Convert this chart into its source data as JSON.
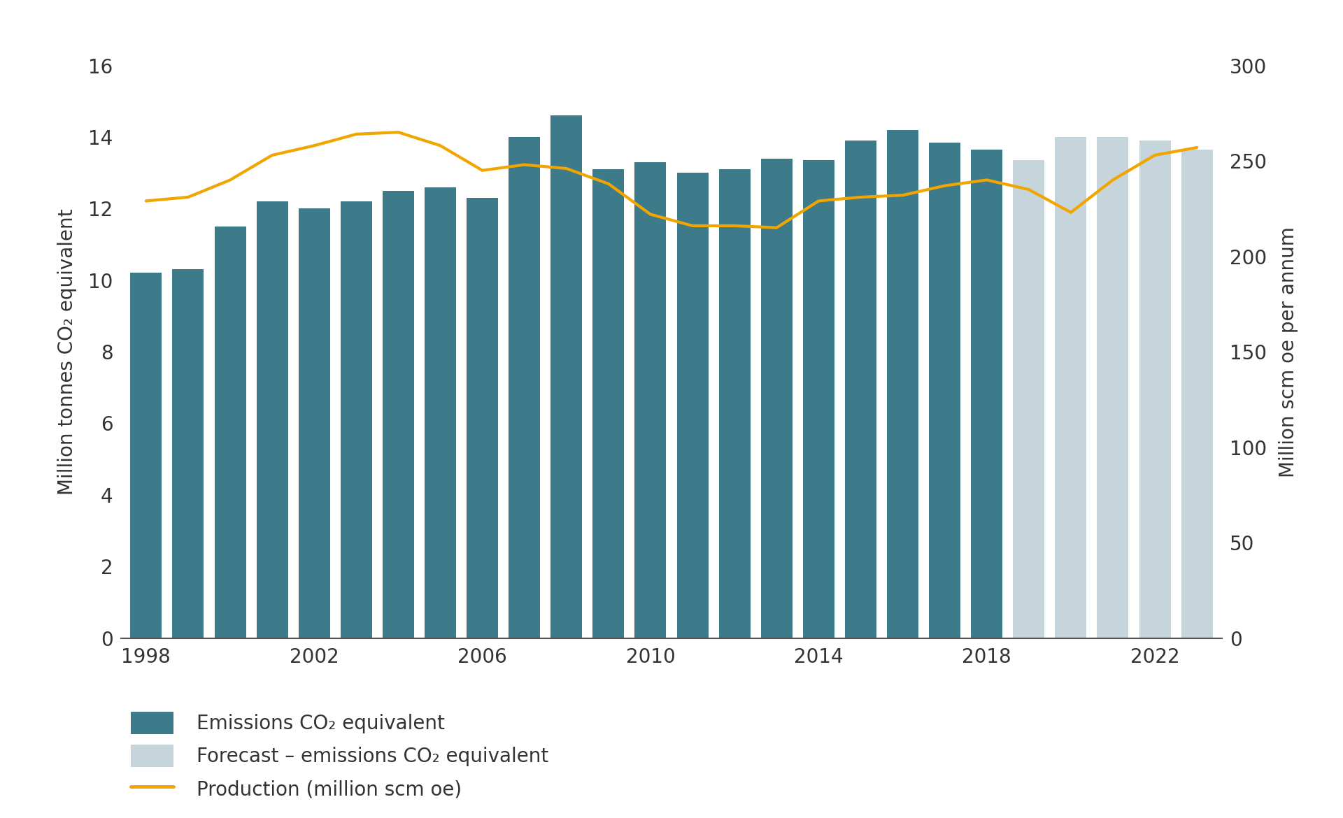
{
  "years": [
    1998,
    1999,
    2000,
    2001,
    2002,
    2003,
    2004,
    2005,
    2006,
    2007,
    2008,
    2009,
    2010,
    2011,
    2012,
    2013,
    2014,
    2015,
    2016,
    2017,
    2018,
    2019,
    2020,
    2021,
    2022,
    2023
  ],
  "bar_values": [
    10.2,
    10.3,
    11.5,
    12.2,
    12.0,
    12.2,
    12.5,
    12.6,
    12.3,
    14.0,
    14.6,
    13.1,
    13.3,
    13.0,
    13.1,
    13.4,
    13.35,
    13.9,
    14.2,
    13.85,
    13.65,
    13.35,
    14.0,
    14.0,
    13.9,
    13.65
  ],
  "bar_is_forecast": [
    false,
    false,
    false,
    false,
    false,
    false,
    false,
    false,
    false,
    false,
    false,
    false,
    false,
    false,
    false,
    false,
    false,
    false,
    false,
    false,
    false,
    true,
    true,
    true,
    true,
    true
  ],
  "production_values": [
    229,
    231,
    240,
    253,
    258,
    264,
    265,
    258,
    245,
    248,
    246,
    238,
    222,
    216,
    216,
    215,
    229,
    231,
    232,
    237,
    240,
    235,
    223,
    240,
    253,
    257
  ],
  "bar_color_actual": "#3d7a8a",
  "bar_color_forecast": "#c5d5db",
  "line_color": "#f0a500",
  "ylabel_left": "Million tonnes CO₂ equivalent",
  "ylabel_right": "Million scm oe per annum",
  "ylim_left": [
    0,
    16
  ],
  "ylim_right": [
    0,
    300
  ],
  "yticks_left": [
    0,
    2,
    4,
    6,
    8,
    10,
    12,
    14,
    16
  ],
  "yticks_right": [
    0,
    50,
    100,
    150,
    200,
    250,
    300
  ],
  "xtick_years": [
    1998,
    2002,
    2006,
    2010,
    2014,
    2018,
    2022
  ],
  "legend_items": [
    {
      "label": "Emissions CO₂ equivalent",
      "color": "#3d7a8a",
      "type": "bar"
    },
    {
      "label": "Forecast – emissions CO₂ equivalent",
      "color": "#c5d5db",
      "type": "bar"
    },
    {
      "label": "Production (million scm oe)",
      "color": "#f0a500",
      "type": "line"
    }
  ],
  "background_color": "#ffffff",
  "bar_width": 0.75,
  "line_width": 3.0,
  "tick_fontsize": 20,
  "label_fontsize": 20,
  "legend_fontsize": 20,
  "tick_color": "#333333",
  "spine_color": "#555555"
}
